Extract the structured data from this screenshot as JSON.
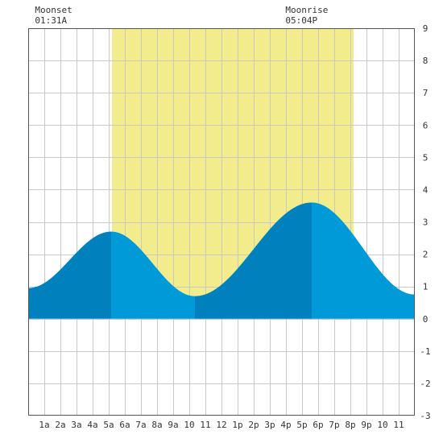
{
  "chart_data": {
    "type": "area",
    "title": "",
    "xlabel": "",
    "ylabel": "",
    "x_unit": "hour of day",
    "xlim": [
      0,
      24
    ],
    "ylim": [
      -3,
      9
    ],
    "grid": true,
    "x_tick_labels": [
      {
        "hour": 1,
        "label": "1a"
      },
      {
        "hour": 2,
        "label": "2a"
      },
      {
        "hour": 3,
        "label": "3a"
      },
      {
        "hour": 4,
        "label": "4a"
      },
      {
        "hour": 5,
        "label": "5a"
      },
      {
        "hour": 6,
        "label": "6a"
      },
      {
        "hour": 7,
        "label": "7a"
      },
      {
        "hour": 8,
        "label": "8a"
      },
      {
        "hour": 9,
        "label": "9a"
      },
      {
        "hour": 10,
        "label": "10"
      },
      {
        "hour": 11,
        "label": "11"
      },
      {
        "hour": 12,
        "label": "12"
      },
      {
        "hour": 13,
        "label": "1p"
      },
      {
        "hour": 14,
        "label": "2p"
      },
      {
        "hour": 15,
        "label": "3p"
      },
      {
        "hour": 16,
        "label": "4p"
      },
      {
        "hour": 17,
        "label": "5p"
      },
      {
        "hour": 18,
        "label": "6p"
      },
      {
        "hour": 19,
        "label": "7p"
      },
      {
        "hour": 20,
        "label": "8p"
      },
      {
        "hour": 21,
        "label": "9p"
      },
      {
        "hour": 22,
        "label": "10"
      },
      {
        "hour": 23,
        "label": "11"
      }
    ],
    "y_ticks": [
      -3,
      -2,
      -1,
      0,
      1,
      2,
      3,
      4,
      5,
      6,
      7,
      8,
      9
    ],
    "daylight": {
      "start_hour": 5.2,
      "end_hour": 20.2
    },
    "tide_points": [
      {
        "x": 0.0,
        "y": 0.95
      },
      {
        "x": 5.15,
        "y": 2.7
      },
      {
        "x": 10.35,
        "y": 0.7
      },
      {
        "x": 17.6,
        "y": 3.6
      },
      {
        "x": 24.0,
        "y": 0.75
      }
    ],
    "annotations": [
      {
        "label": "Moonset",
        "time": "01:31A",
        "hour": 1.52
      },
      {
        "label": "Moonrise",
        "time": "05:04P",
        "hour": 17.07
      }
    ],
    "colors": {
      "daylight": "#f3ec8c",
      "tide_dark": "#0080bd",
      "tide_light": "#009ad9",
      "grid": "#c8c8c8",
      "border": "#555555"
    }
  }
}
